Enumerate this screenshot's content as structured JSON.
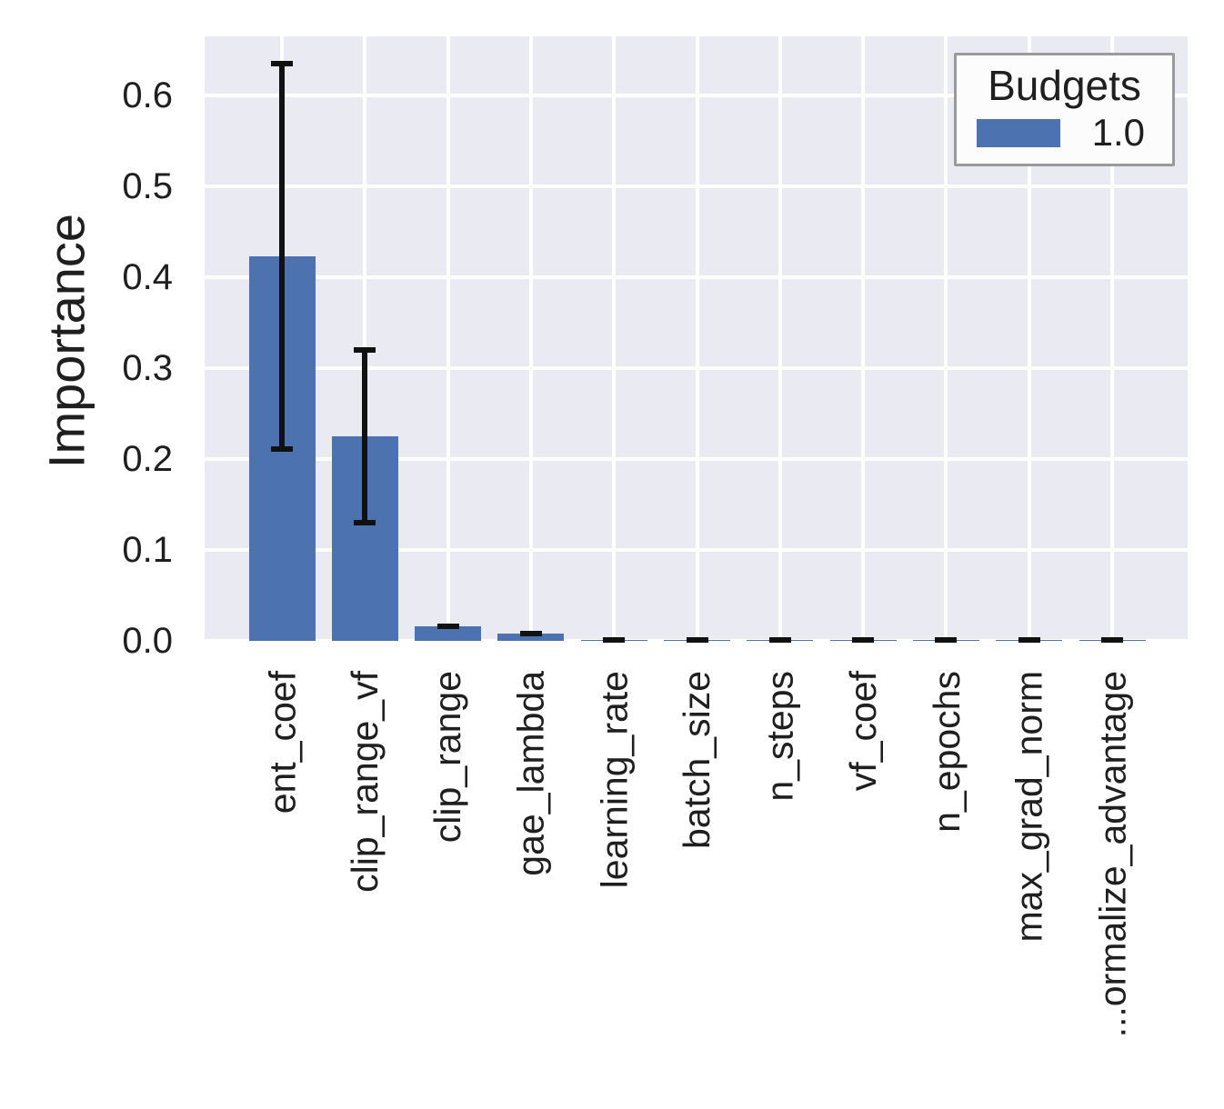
{
  "chart_data": {
    "type": "bar",
    "title": "",
    "xlabel": "",
    "ylabel": "Importance",
    "categories": [
      "ent_coef",
      "clip_range_vf",
      "clip_range",
      "gae_lambda",
      "learning_rate",
      "batch_size",
      "n_steps",
      "vf_coef",
      "n_epochs",
      "max_grad_norm",
      "...ormalize_advantage"
    ],
    "series": [
      {
        "name": "1.0",
        "values": [
          0.423,
          0.225,
          0.016,
          0.008,
          0.001,
          0.001,
          0.001,
          0.001,
          0.001,
          0.001,
          0.001
        ],
        "error": [
          0.212,
          0.095,
          0.004,
          0.003,
          0.002,
          0.002,
          0.002,
          0.002,
          0.002,
          0.002,
          0.002
        ]
      }
    ],
    "yticks": [
      0.0,
      0.1,
      0.2,
      0.3,
      0.4,
      0.5,
      0.6
    ],
    "yticklabels": [
      "0.0",
      "0.1",
      "0.2",
      "0.3",
      "0.4",
      "0.5",
      "0.6"
    ],
    "ylim": [
      0,
      0.665
    ],
    "grid": true,
    "legend": {
      "title": "Budgets",
      "position": "upper right",
      "entries": [
        {
          "label": "1.0",
          "color": "#4C72B0"
        }
      ]
    },
    "colors": {
      "bar": "#4C72B0",
      "plot_background": "#EAEAF2",
      "grid": "#FFFFFF",
      "error_bar": "#111111",
      "text": "#1F1F1F",
      "legend_border": "#9A9A9A",
      "legend_background": "#FCFCFD"
    }
  }
}
